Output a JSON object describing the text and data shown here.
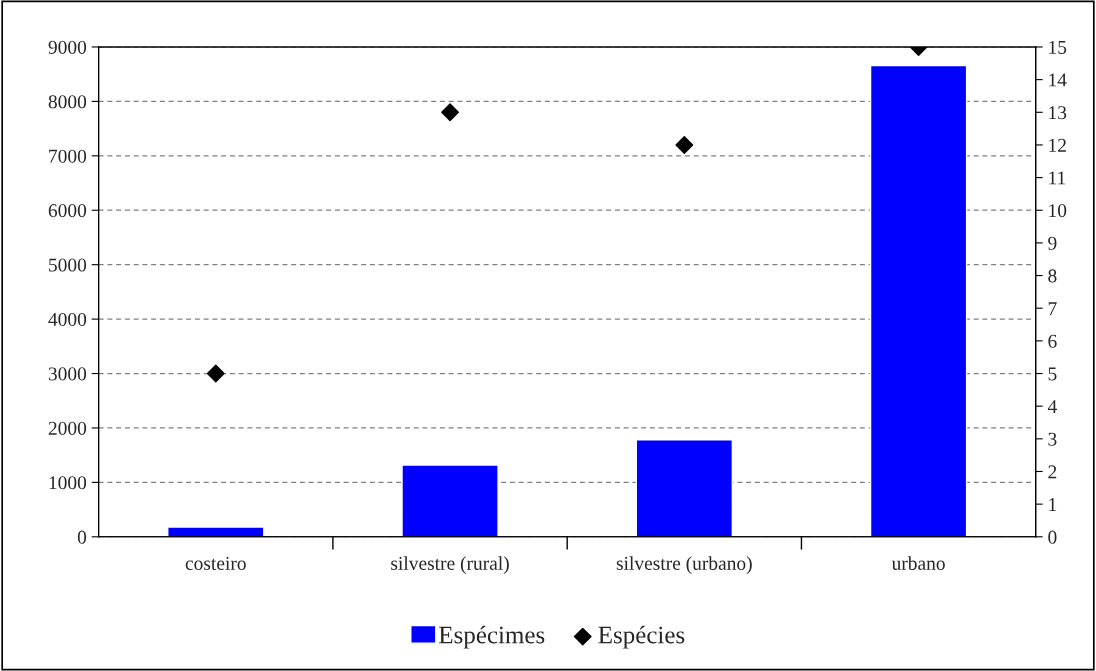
{
  "chart_data": {
    "type": "bar",
    "categories": [
      "costeiro",
      "silvestre (rural)",
      "silvestre (urbano)",
      "urbano"
    ],
    "series": [
      {
        "name": "Espécimes",
        "color": "#0000ff",
        "values": [
          180,
          1320,
          1780,
          8660
        ]
      },
      {
        "name": "Espécies",
        "type": "scatter",
        "axis": "y2",
        "color": "#000000",
        "marker": "diamond",
        "values": [
          5,
          13,
          12,
          15
        ]
      }
    ],
    "ylim": [
      0,
      9000
    ],
    "yticks": [
      0,
      1000,
      2000,
      3000,
      4000,
      5000,
      6000,
      7000,
      8000,
      9000
    ],
    "y2lim": [
      0,
      15
    ],
    "y2ticks": [
      0,
      1,
      2,
      3,
      4,
      5,
      6,
      7,
      8,
      9,
      10,
      11,
      12,
      13,
      14,
      15
    ],
    "grid": "y",
    "legend": "bottom"
  }
}
